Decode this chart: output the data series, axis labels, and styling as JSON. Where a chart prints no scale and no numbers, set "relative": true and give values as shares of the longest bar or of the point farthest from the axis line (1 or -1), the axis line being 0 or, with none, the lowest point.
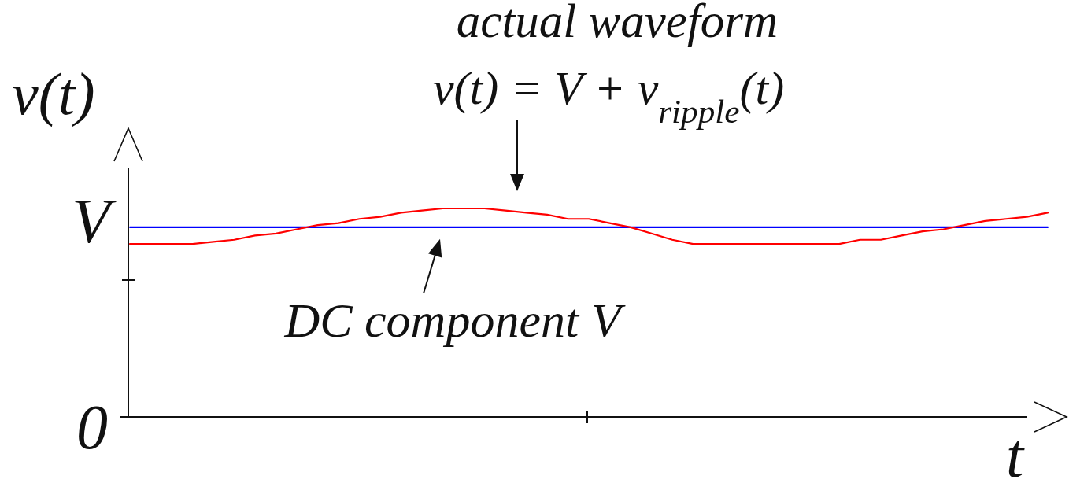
{
  "chart_data": {
    "type": "line",
    "xlabel": "t",
    "ylabel": "v(t)",
    "relative": true,
    "categories": [
      null,
      null,
      null,
      null,
      null,
      null,
      null,
      null,
      null,
      null,
      null,
      null,
      null,
      null,
      null,
      null,
      null,
      null,
      null,
      null,
      null,
      null,
      null,
      null,
      null,
      null,
      null,
      null,
      null,
      null,
      null,
      null,
      null,
      null,
      null,
      null,
      null,
      null,
      null,
      null,
      null,
      null,
      null,
      null,
      null
    ],
    "series": [
      {
        "color": "#0000ff",
        "values": [
          0.91,
          0.91,
          0.91,
          0.91,
          0.91,
          0.91,
          0.91,
          0.91,
          0.91,
          0.91,
          0.91,
          0.91,
          0.91,
          0.91,
          0.91,
          0.91,
          0.91,
          0.91,
          0.91,
          0.91,
          0.91,
          0.91,
          0.91,
          0.91,
          0.91,
          0.91,
          0.91,
          0.91,
          0.91,
          0.91,
          0.91,
          0.91,
          0.91,
          0.91,
          0.91,
          0.91,
          0.91,
          0.91,
          0.91,
          0.91,
          0.91,
          0.91,
          0.91,
          0.91,
          0.91
        ]
      },
      {
        "color": "#ff0000",
        "values": [
          0.83,
          0.83,
          0.83,
          0.83,
          0.84,
          0.85,
          0.87,
          0.88,
          0.9,
          0.92,
          0.93,
          0.95,
          0.96,
          0.98,
          0.99,
          1,
          1,
          1,
          0.99,
          0.98,
          0.97,
          0.95,
          0.95,
          0.93,
          0.91,
          0.88,
          0.85,
          0.83,
          0.83,
          0.83,
          0.83,
          0.83,
          0.83,
          0.83,
          0.83,
          0.85,
          0.85,
          0.87,
          0.89,
          0.9,
          0.92,
          0.94,
          0.95,
          0.96,
          0.98
        ]
      }
    ],
    "annotations": [
      "actual waveform",
      "v(t) = V + v$_{ripple}$(t)",
      {
        "text": "DC component V",
        "y": 0.91
      },
      "V",
      "0"
    ]
  }
}
